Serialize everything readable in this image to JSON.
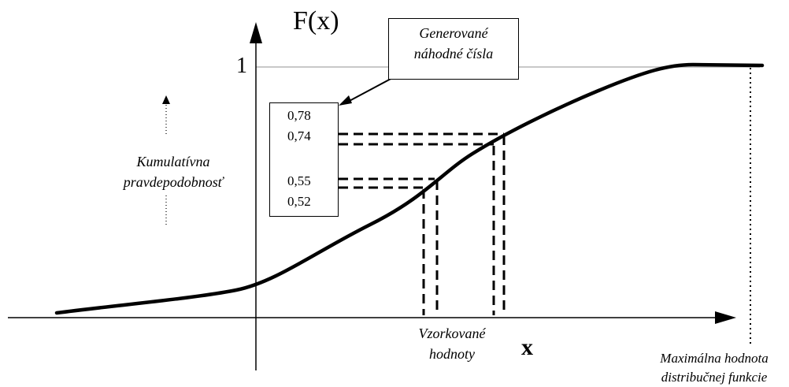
{
  "axis": {
    "y_label": "F(x)",
    "x_label": "x",
    "y_max_tick": "1"
  },
  "generated_box": {
    "line1": "Generované",
    "line2": "náhodné čísla"
  },
  "numbers": [
    "0,78",
    "0,74",
    "0,55",
    "0,52"
  ],
  "cumulative_label": {
    "line1": "Kumulatívna",
    "line2": "pravdepodobnosť"
  },
  "sampled_label": {
    "line1": "Vzorkované",
    "line2": "hodnoty"
  },
  "max_label": {
    "line1": "Maximálna hodnota",
    "line2": "distribučnej funkcie"
  },
  "colors": {
    "curve": "#000000",
    "grid_line": "#c8c8c8"
  }
}
